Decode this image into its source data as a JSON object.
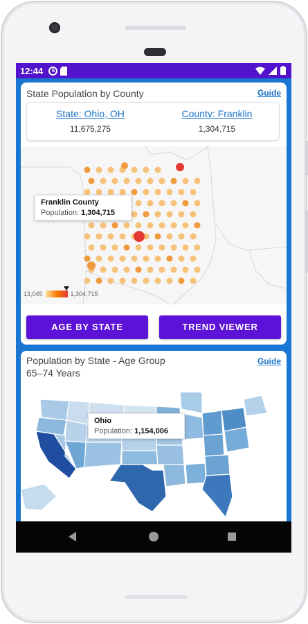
{
  "status_bar": {
    "time": "12:44",
    "left_icons": [
      "sync-icon",
      "sd-card-icon"
    ],
    "right_icons": [
      "wifi-icon",
      "signal-icon",
      "battery-icon"
    ]
  },
  "county_card": {
    "title": "State Population by County",
    "guide_label": "Guide",
    "state_link": "State: Ohio, OH",
    "state_value": "11,675,275",
    "county_link": "County: Franklin",
    "county_value": "1,304,715",
    "tooltip": {
      "name": "Franklin County",
      "population_label": "Population:",
      "population_value": "1,304,715"
    },
    "legend": {
      "min": "13,045",
      "max": "1,304,715"
    },
    "buttons": {
      "age_by_state": "AGE BY STATE",
      "trend_viewer": "TREND VIEWER"
    },
    "colors": {
      "low": "#f6c27a",
      "mid": "#f09a3e",
      "high": "#e53935"
    }
  },
  "age_card": {
    "title_line1": "Population by State - Age Group",
    "title_line2": "65–74 Years",
    "guide_label": "Guide",
    "tooltip": {
      "name": "Ohio",
      "population_label": "Population:",
      "population_value": "1,154,006"
    },
    "colors": {
      "light": "#c6dcef",
      "mid": "#6fa7d4",
      "dark": "#1e4f9c"
    }
  },
  "nav_bar": {
    "icons": [
      "back-icon",
      "home-icon",
      "recent-apps-icon"
    ]
  }
}
